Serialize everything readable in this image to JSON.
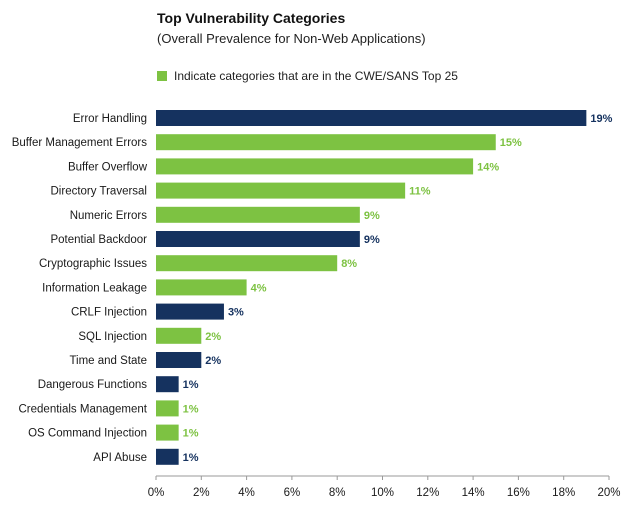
{
  "colors": {
    "top25": "#7dc242",
    "other": "#15325f",
    "axis": "#999999"
  },
  "chart_data": {
    "type": "bar",
    "orientation": "horizontal",
    "title": "Top Vulnerability Categories",
    "subtitle": "(Overall Prevalence for Non-Web Applications)",
    "legend": {
      "label": "Indicate categories that are in the CWE/SANS Top 25",
      "placement": "top-left"
    },
    "categories": [
      "Error Handling",
      "Buffer Management Errors",
      "Buffer Overflow",
      "Directory Traversal",
      "Numeric Errors",
      "Potential Backdoor",
      "Cryptographic Issues",
      "Information Leakage",
      "CRLF Injection",
      "SQL Injection",
      "Time and State",
      "Dangerous Functions",
      "Credentials Management",
      "OS Command Injection",
      "API Abuse"
    ],
    "values": [
      19,
      15,
      14,
      11,
      9,
      9,
      8,
      4,
      3,
      2,
      2,
      1,
      1,
      1,
      1
    ],
    "value_labels": [
      "19%",
      "15%",
      "14%",
      "11%",
      "9%",
      "9%",
      "8%",
      "4%",
      "3%",
      "2%",
      "2%",
      "1%",
      "1%",
      "1%",
      "1%"
    ],
    "in_top25": [
      false,
      true,
      true,
      true,
      true,
      false,
      true,
      true,
      false,
      true,
      false,
      false,
      true,
      true,
      false
    ],
    "xlim": [
      0,
      20
    ],
    "xticks": [
      0,
      2,
      4,
      6,
      8,
      10,
      12,
      14,
      16,
      18,
      20
    ],
    "xtick_labels": [
      "0%",
      "2%",
      "4%",
      "6%",
      "8%",
      "10%",
      "12%",
      "14%",
      "16%",
      "18%",
      "20%"
    ],
    "xlabel": "",
    "ylabel": "",
    "grid": false
  }
}
